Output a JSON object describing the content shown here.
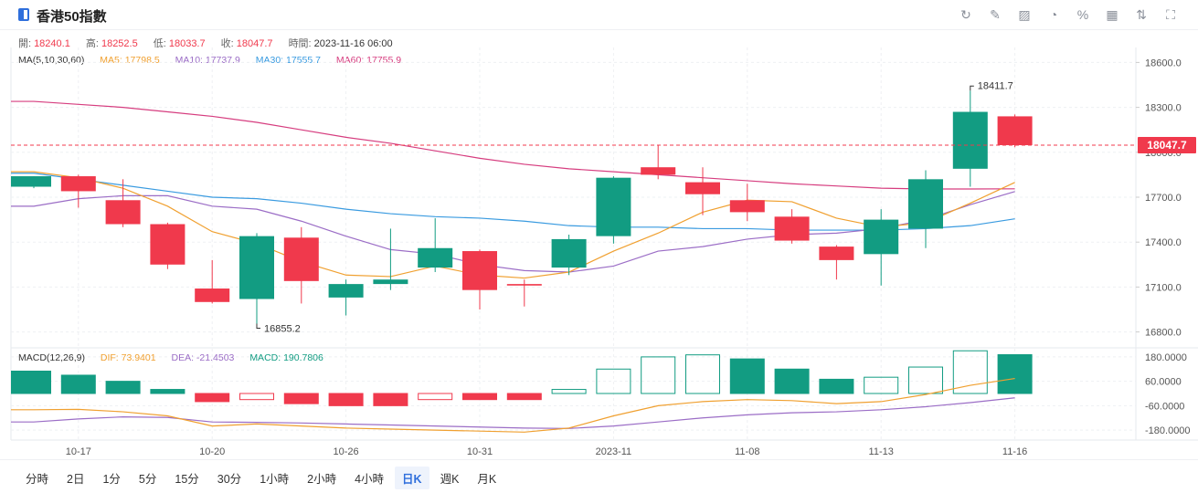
{
  "header": {
    "title": "香港50指數",
    "tools": [
      {
        "name": "refresh-icon",
        "glyph": "↻"
      },
      {
        "name": "draw-icon",
        "glyph": "✎"
      },
      {
        "name": "image-icon",
        "glyph": "▨"
      },
      {
        "name": "pie-icon",
        "glyph": "◔"
      },
      {
        "name": "percent-icon",
        "glyph": "%"
      },
      {
        "name": "grid-icon",
        "glyph": "▦"
      },
      {
        "name": "sort-icon",
        "glyph": "⇅"
      },
      {
        "name": "fullscreen-icon",
        "glyph": "⛶"
      }
    ]
  },
  "ohlc": {
    "open_label": "開:",
    "open": "18240.1",
    "high_label": "高:",
    "high": "18252.5",
    "low_label": "低:",
    "low": "18033.7",
    "close_label": "收:",
    "close": "18047.7",
    "time_label": "時間:",
    "time": "2023-11-16 06:00"
  },
  "ma_legend": {
    "title": "MA(5,10,30,60)",
    "ma5": "MA5: 17798.5",
    "ma10": "MA10: 17737.9",
    "ma30": "MA30: 17555.7",
    "ma60": "MA60: 17755.9"
  },
  "macd_legend": {
    "title": "MACD(12,26,9)",
    "dif": "DIF: 73.9401",
    "dea": "DEA: -21.4503",
    "macd": "MACD: 190.7806"
  },
  "colors": {
    "up": "#129c82",
    "down": "#f0394c",
    "ma5": "#f0a030",
    "ma10": "#9b6dc6",
    "ma30": "#3a9be0",
    "ma60": "#d63d7f"
  },
  "periods": [
    {
      "label": "分時",
      "active": false
    },
    {
      "label": "2日",
      "active": false
    },
    {
      "label": "1分",
      "active": false
    },
    {
      "label": "5分",
      "active": false
    },
    {
      "label": "15分",
      "active": false
    },
    {
      "label": "30分",
      "active": false
    },
    {
      "label": "1小時",
      "active": false
    },
    {
      "label": "2小時",
      "active": false
    },
    {
      "label": "4小時",
      "active": false
    },
    {
      "label": "日K",
      "active": true
    },
    {
      "label": "週K",
      "active": false
    },
    {
      "label": "月K",
      "active": false
    }
  ],
  "chart_data": {
    "type": "candlestick",
    "price_ticks": [
      18600,
      18300,
      18000,
      17700,
      17400,
      17100,
      16800
    ],
    "price_tick_labels": [
      "18600.0",
      "18300.0",
      "18000.0",
      "17700.0",
      "17400.0",
      "17100.0",
      "16800.0"
    ],
    "price_range": [
      16700,
      18700
    ],
    "last_price": 18047.7,
    "last_price_label": "18047.7",
    "max_label": "18411.7",
    "min_label": "16855.2",
    "x_labels": [
      {
        "index": 1,
        "label": "10-17"
      },
      {
        "index": 4,
        "label": "10-20"
      },
      {
        "index": 7,
        "label": "10-26"
      },
      {
        "index": 10,
        "label": "10-31"
      },
      {
        "index": 13,
        "label": "2023-11"
      },
      {
        "index": 16,
        "label": "11-08"
      },
      {
        "index": 19,
        "label": "11-13"
      },
      {
        "index": 22,
        "label": "11-16"
      }
    ],
    "candles": [
      {
        "o": 17770,
        "h": 17840,
        "l": 17760,
        "c": 17840
      },
      {
        "o": 17840,
        "h": 17850,
        "l": 17630,
        "c": 17740
      },
      {
        "o": 17680,
        "h": 17820,
        "l": 17500,
        "c": 17520
      },
      {
        "o": 17520,
        "h": 17530,
        "l": 17220,
        "c": 17250
      },
      {
        "o": 17090,
        "h": 17280,
        "l": 16990,
        "c": 17000
      },
      {
        "o": 17020,
        "h": 17460,
        "l": 16855.2,
        "c": 17440
      },
      {
        "o": 17430,
        "h": 17500,
        "l": 16990,
        "c": 17140
      },
      {
        "o": 17030,
        "h": 17150,
        "l": 16910,
        "c": 17120
      },
      {
        "o": 17120,
        "h": 17490,
        "l": 17080,
        "c": 17150
      },
      {
        "o": 17230,
        "h": 17560,
        "l": 17200,
        "c": 17360
      },
      {
        "o": 17340,
        "h": 17350,
        "l": 16950,
        "c": 17080
      },
      {
        "o": 17120,
        "h": 17150,
        "l": 16970,
        "c": 17110
      },
      {
        "o": 17230,
        "h": 17450,
        "l": 17180,
        "c": 17420
      },
      {
        "o": 17440,
        "h": 17840,
        "l": 17390,
        "c": 17830
      },
      {
        "o": 17900,
        "h": 18050,
        "l": 17820,
        "c": 17850
      },
      {
        "o": 17800,
        "h": 17900,
        "l": 17580,
        "c": 17720
      },
      {
        "o": 17680,
        "h": 17790,
        "l": 17540,
        "c": 17600
      },
      {
        "o": 17570,
        "h": 17620,
        "l": 17390,
        "c": 17410
      },
      {
        "o": 17370,
        "h": 17380,
        "l": 17150,
        "c": 17280
      },
      {
        "o": 17320,
        "h": 17620,
        "l": 17110,
        "c": 17550
      },
      {
        "o": 17490,
        "h": 17880,
        "l": 17360,
        "c": 17820
      },
      {
        "o": 17890,
        "h": 18411.7,
        "l": 17770,
        "c": 18270
      },
      {
        "o": 18240.1,
        "h": 18252.5,
        "l": 18033.7,
        "c": 18047.7
      }
    ],
    "ma5": [
      17870,
      17830,
      17760,
      17640,
      17470,
      17390,
      17270,
      17180,
      17170,
      17240,
      17180,
      17160,
      17200,
      17340,
      17460,
      17600,
      17680,
      17670,
      17560,
      17500,
      17530,
      17660,
      17798.5
    ],
    "ma10": [
      17640,
      17690,
      17710,
      17710,
      17640,
      17620,
      17540,
      17440,
      17350,
      17320,
      17250,
      17210,
      17200,
      17240,
      17340,
      17370,
      17420,
      17450,
      17460,
      17490,
      17550,
      17650,
      17737.9
    ],
    "ma30": [
      17860,
      17820,
      17780,
      17740,
      17700,
      17690,
      17660,
      17620,
      17590,
      17570,
      17560,
      17540,
      17510,
      17500,
      17500,
      17490,
      17490,
      17480,
      17480,
      17480,
      17490,
      17510,
      17555.7
    ],
    "ma60": [
      18340,
      18320,
      18300,
      18270,
      18240,
      18200,
      18150,
      18100,
      18060,
      18010,
      17960,
      17920,
      17890,
      17870,
      17850,
      17830,
      17810,
      17790,
      17775,
      17760,
      17755,
      17755,
      17755.9
    ],
    "macd_ticks": [
      180,
      60,
      -60,
      -180
    ],
    "macd_tick_labels": [
      "180.0000",
      "60.0000",
      "-60.0000",
      "-180.0000"
    ],
    "macd_range": [
      -220,
      220
    ],
    "macd_hist": [
      110,
      90,
      60,
      20,
      -40,
      -30,
      -50,
      -60,
      -60,
      -30,
      -30,
      -30,
      20,
      120,
      180,
      190,
      170,
      120,
      70,
      80,
      130,
      210,
      190.78
    ],
    "dif": [
      -80,
      -78,
      -90,
      -110,
      -160,
      -150,
      -160,
      -170,
      -175,
      -180,
      -185,
      -190,
      -170,
      -110,
      -60,
      -40,
      -30,
      -35,
      -50,
      -40,
      -5,
      40,
      73.94
    ],
    "dea": [
      -140,
      -125,
      -115,
      -118,
      -140,
      -142,
      -145,
      -150,
      -155,
      -160,
      -165,
      -170,
      -172,
      -160,
      -140,
      -120,
      -105,
      -95,
      -90,
      -80,
      -65,
      -45,
      -21.45
    ]
  }
}
